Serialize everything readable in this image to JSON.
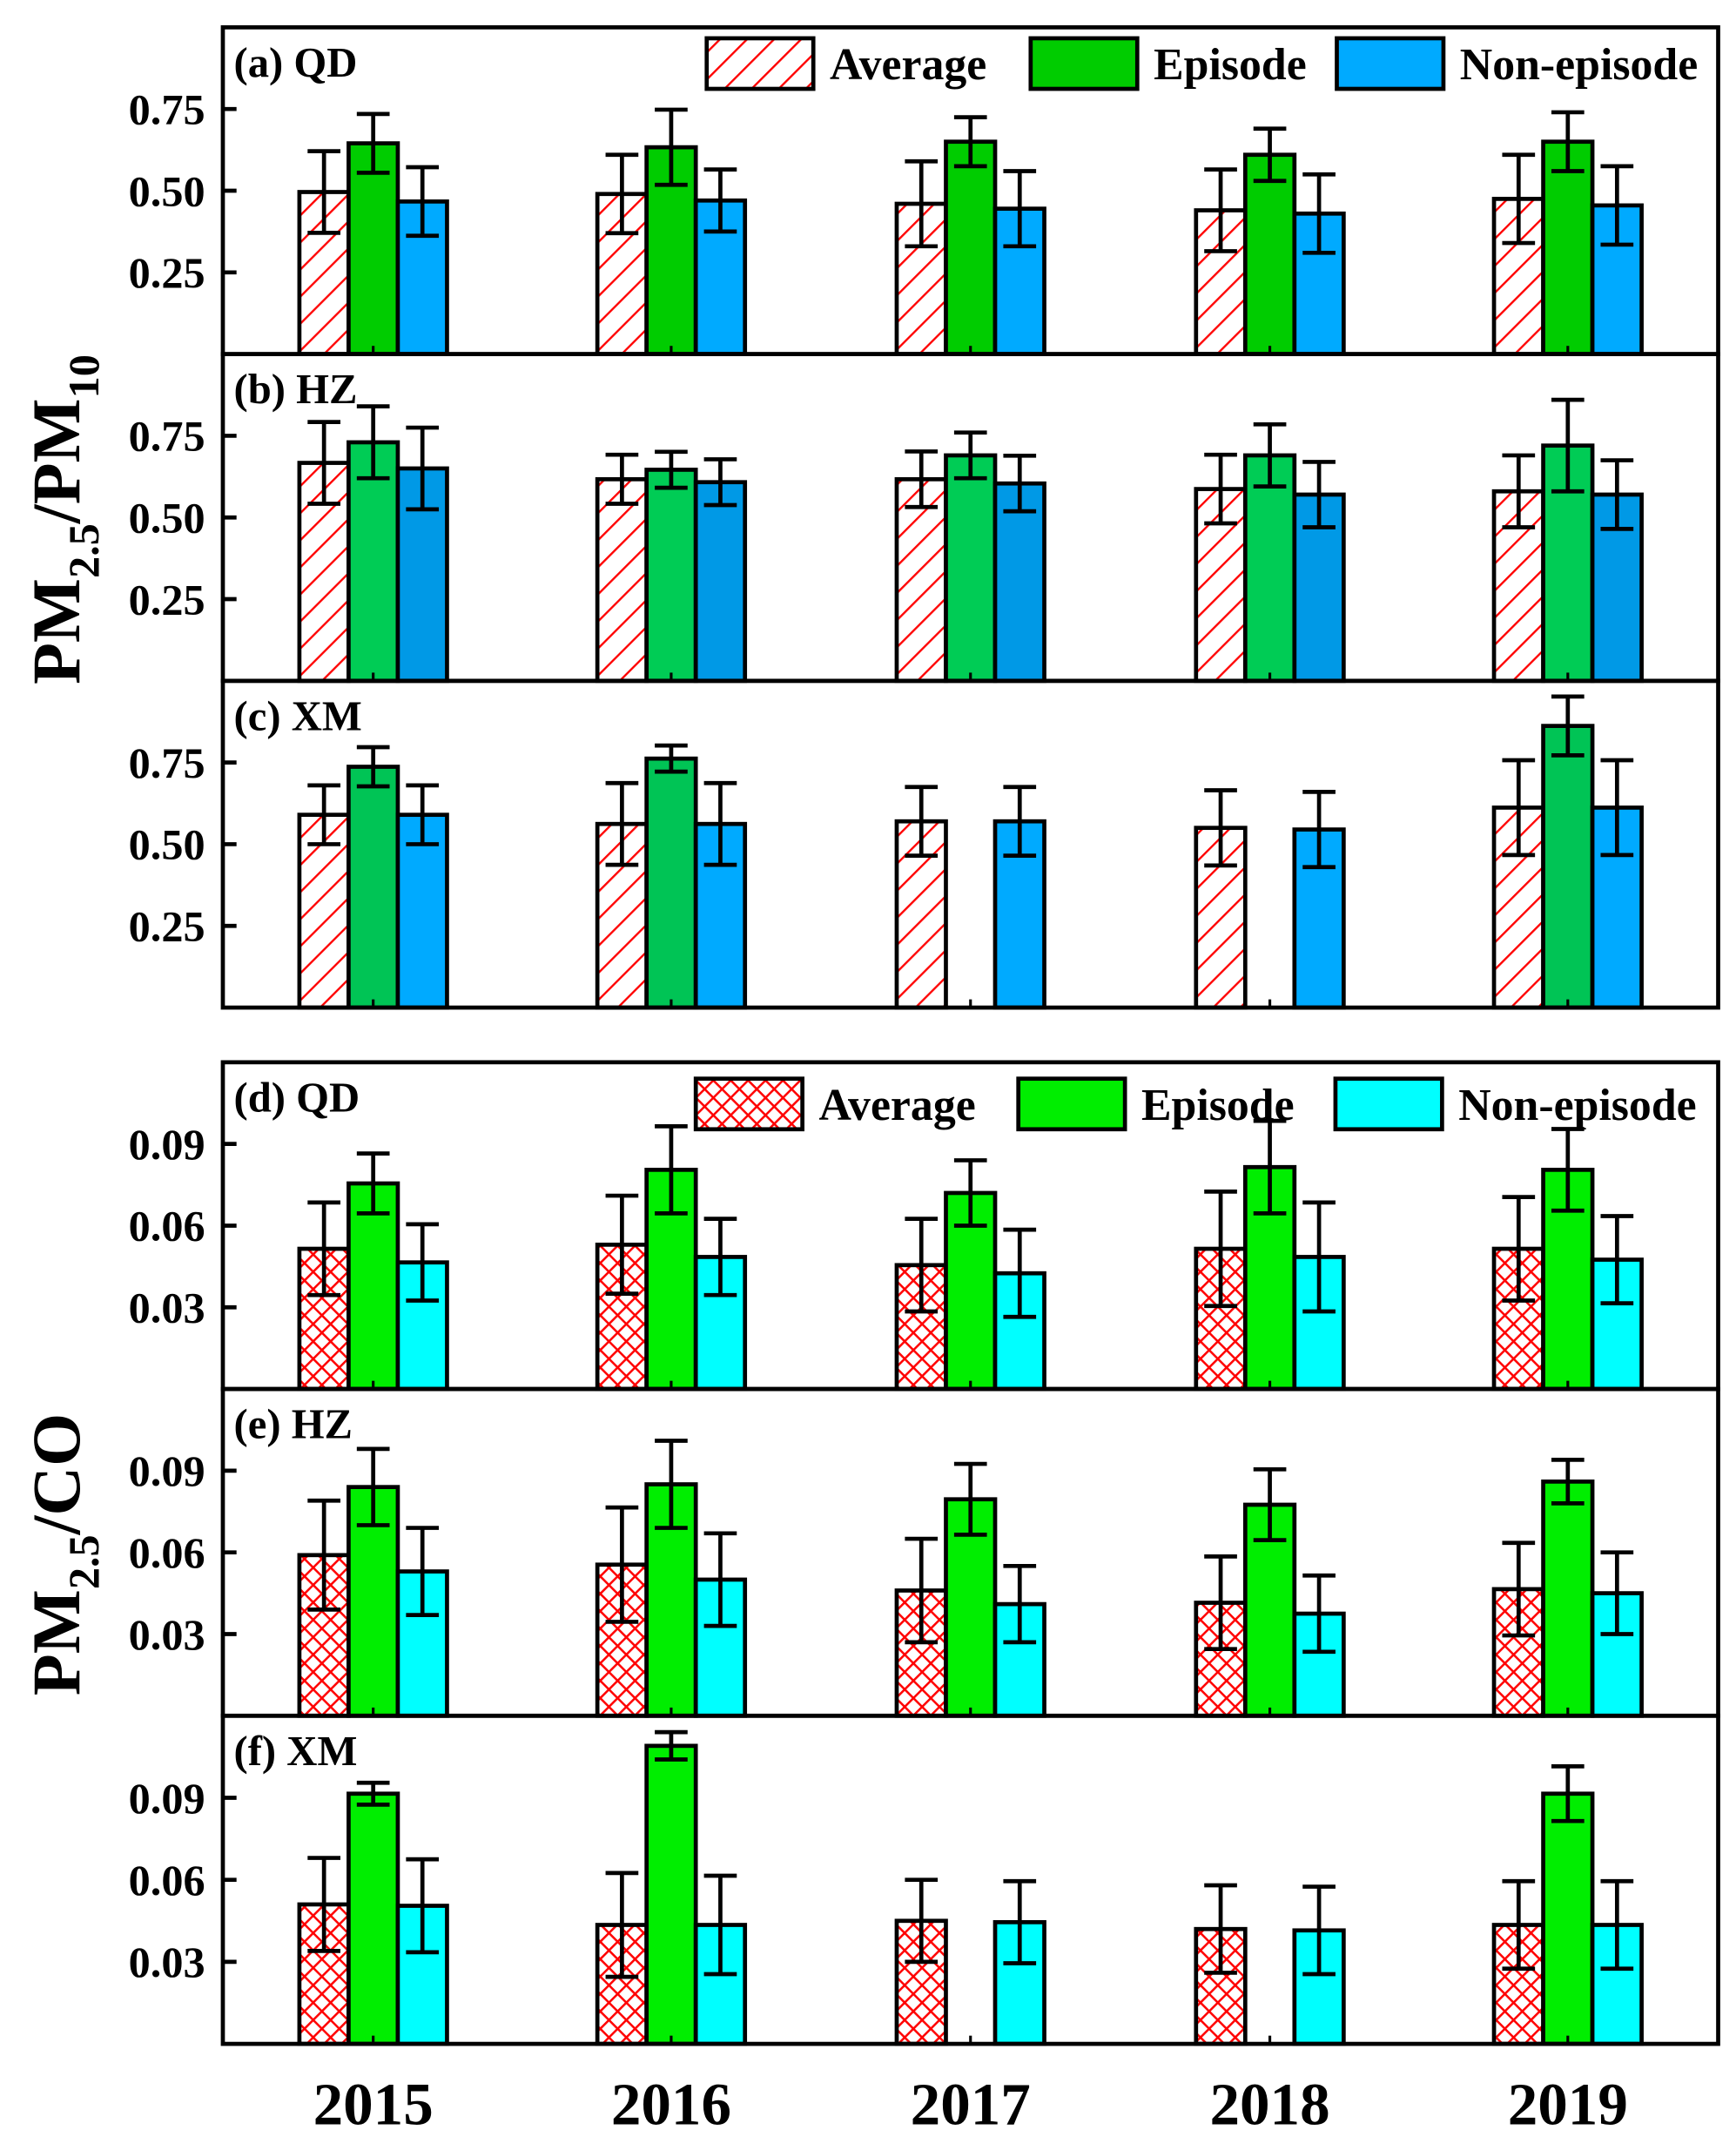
{
  "chart_data": [
    {
      "type": "bar",
      "id": "a",
      "panel_label": "(a) QD",
      "group": "top",
      "categories": [
        "2015",
        "2016",
        "2017",
        "2018",
        "2019"
      ],
      "ylabel": "PM2.5/PM10",
      "ylim": [
        0,
        1.0
      ],
      "yticks": [
        "0.25",
        "0.50",
        "0.75"
      ],
      "series": [
        {
          "name": "Average",
          "values": [
            0.496,
            0.49,
            0.46,
            0.44,
            0.475
          ],
          "errors": [
            0.125,
            0.12,
            0.13,
            0.125,
            0.135
          ],
          "color": "#ff0000",
          "fill": "hatch"
        },
        {
          "name": "Episode",
          "values": [
            0.645,
            0.633,
            0.65,
            0.61,
            0.65
          ],
          "errors": [
            0.09,
            0.115,
            0.075,
            0.08,
            0.09
          ],
          "color": "#00cc00"
        },
        {
          "name": "Non-episode",
          "values": [
            0.467,
            0.47,
            0.445,
            0.43,
            0.455
          ],
          "errors": [
            0.105,
            0.095,
            0.115,
            0.12,
            0.12
          ],
          "color": "#00aaff"
        }
      ]
    },
    {
      "type": "bar",
      "id": "b",
      "panel_label": "(b) HZ",
      "group": "top",
      "categories": [
        "2015",
        "2016",
        "2017",
        "2018",
        "2019"
      ],
      "ylim": [
        0,
        1.0
      ],
      "yticks": [
        "0.25",
        "0.50",
        "0.75"
      ],
      "series": [
        {
          "name": "Average",
          "values": [
            0.667,
            0.617,
            0.617,
            0.587,
            0.58
          ],
          "errors": [
            0.125,
            0.075,
            0.085,
            0.105,
            0.11
          ],
          "color": "#ff0000",
          "fill": "hatch"
        },
        {
          "name": "Episode",
          "values": [
            0.73,
            0.646,
            0.69,
            0.69,
            0.72
          ],
          "errors": [
            0.11,
            0.055,
            0.07,
            0.095,
            0.14
          ],
          "color": "#00cc55"
        },
        {
          "name": "Non-episode",
          "values": [
            0.65,
            0.608,
            0.604,
            0.57,
            0.57
          ],
          "errors": [
            0.125,
            0.07,
            0.085,
            0.1,
            0.105
          ],
          "color": "#0099e6"
        }
      ]
    },
    {
      "type": "bar",
      "id": "c",
      "panel_label": "(c) XM",
      "group": "top",
      "categories": [
        "2015",
        "2016",
        "2017",
        "2018",
        "2019"
      ],
      "ylim": [
        0,
        1.0
      ],
      "yticks": [
        "0.25",
        "0.50",
        "0.75"
      ],
      "series": [
        {
          "name": "Average",
          "values": [
            0.59,
            0.562,
            0.57,
            0.55,
            0.612
          ],
          "errors": [
            0.09,
            0.125,
            0.105,
            0.115,
            0.145
          ],
          "color": "#ff0000",
          "fill": "hatch"
        },
        {
          "name": "Episode",
          "values": [
            0.737,
            0.762,
            null,
            null,
            0.862
          ],
          "errors": [
            0.06,
            0.04,
            null,
            null,
            0.09
          ],
          "color": "#00c455"
        },
        {
          "name": "Non-episode",
          "values": [
            0.59,
            0.562,
            0.57,
            0.545,
            0.612
          ],
          "errors": [
            0.09,
            0.125,
            0.105,
            0.115,
            0.145
          ],
          "color": "#00aaff"
        }
      ]
    },
    {
      "type": "bar",
      "id": "d",
      "panel_label": "(d) QD",
      "group": "bottom",
      "categories": [
        "2015",
        "2016",
        "2017",
        "2018",
        "2019"
      ],
      "ylabel": "PM2.5/CO",
      "ylim": [
        0,
        0.12
      ],
      "yticks": [
        "0.03",
        "0.06",
        "0.09"
      ],
      "series": [
        {
          "name": "Average",
          "values": [
            0.0515,
            0.053,
            0.0455,
            0.0515,
            0.0515
          ],
          "errors": [
            0.017,
            0.018,
            0.017,
            0.021,
            0.019
          ],
          "color": "#ff0000",
          "fill": "crosshatch"
        },
        {
          "name": "Episode",
          "values": [
            0.0755,
            0.0805,
            0.072,
            0.0815,
            0.0805
          ],
          "errors": [
            0.011,
            0.016,
            0.012,
            0.017,
            0.015
          ],
          "color": "#00ee00"
        },
        {
          "name": "Non-episode",
          "values": [
            0.0465,
            0.0485,
            0.0425,
            0.0485,
            0.0475
          ],
          "errors": [
            0.014,
            0.014,
            0.016,
            0.02,
            0.016
          ],
          "color": "#00ffff"
        }
      ]
    },
    {
      "type": "bar",
      "id": "e",
      "panel_label": "(e) HZ",
      "group": "bottom",
      "categories": [
        "2015",
        "2016",
        "2017",
        "2018",
        "2019"
      ],
      "ylim": [
        0,
        0.12
      ],
      "yticks": [
        "0.03",
        "0.06",
        "0.09"
      ],
      "series": [
        {
          "name": "Average",
          "values": [
            0.059,
            0.0555,
            0.046,
            0.0415,
            0.0465
          ],
          "errors": [
            0.02,
            0.021,
            0.019,
            0.017,
            0.017
          ],
          "color": "#ff0000",
          "fill": "crosshatch"
        },
        {
          "name": "Episode",
          "values": [
            0.084,
            0.085,
            0.0795,
            0.0775,
            0.086
          ],
          "errors": [
            0.014,
            0.016,
            0.013,
            0.013,
            0.008
          ],
          "color": "#00ee00"
        },
        {
          "name": "Non-episode",
          "values": [
            0.053,
            0.05,
            0.041,
            0.0375,
            0.045
          ],
          "errors": [
            0.016,
            0.017,
            0.014,
            0.014,
            0.015
          ],
          "color": "#00ffff"
        }
      ]
    },
    {
      "type": "bar",
      "id": "f",
      "panel_label": "(f) XM",
      "group": "bottom",
      "categories": [
        "2015",
        "2016",
        "2017",
        "2018",
        "2019"
      ],
      "ylim": [
        0,
        0.12
      ],
      "yticks": [
        "0.03",
        "0.06",
        "0.09"
      ],
      "series": [
        {
          "name": "Average",
          "values": [
            0.051,
            0.0435,
            0.045,
            0.042,
            0.0435
          ],
          "errors": [
            0.017,
            0.019,
            0.015,
            0.016,
            0.016
          ],
          "color": "#ff0000",
          "fill": "crosshatch"
        },
        {
          "name": "Episode",
          "values": [
            0.0915,
            0.109,
            null,
            null,
            0.0915
          ],
          "errors": [
            0.004,
            0.005,
            null,
            null,
            0.01
          ],
          "color": "#00ee00"
        },
        {
          "name": "Non-episode",
          "values": [
            0.0505,
            0.0435,
            0.0445,
            0.0415,
            0.0435
          ],
          "errors": [
            0.017,
            0.018,
            0.015,
            0.016,
            0.016
          ],
          "color": "#00ffff"
        }
      ]
    }
  ],
  "legends": {
    "top": [
      "Average",
      "Episode",
      "Non-episode"
    ],
    "bottom": [
      "Average",
      "Episode",
      "Non-episode"
    ]
  },
  "ylabels": {
    "top": {
      "main": "PM",
      "sub1": "2.5",
      "mid": "/PM",
      "sub2": "10"
    },
    "bottom": {
      "main": "PM",
      "sub1": "2.5",
      "mid": "/CO"
    }
  },
  "xticks": [
    "2015",
    "2016",
    "2017",
    "2018",
    "2019"
  ]
}
